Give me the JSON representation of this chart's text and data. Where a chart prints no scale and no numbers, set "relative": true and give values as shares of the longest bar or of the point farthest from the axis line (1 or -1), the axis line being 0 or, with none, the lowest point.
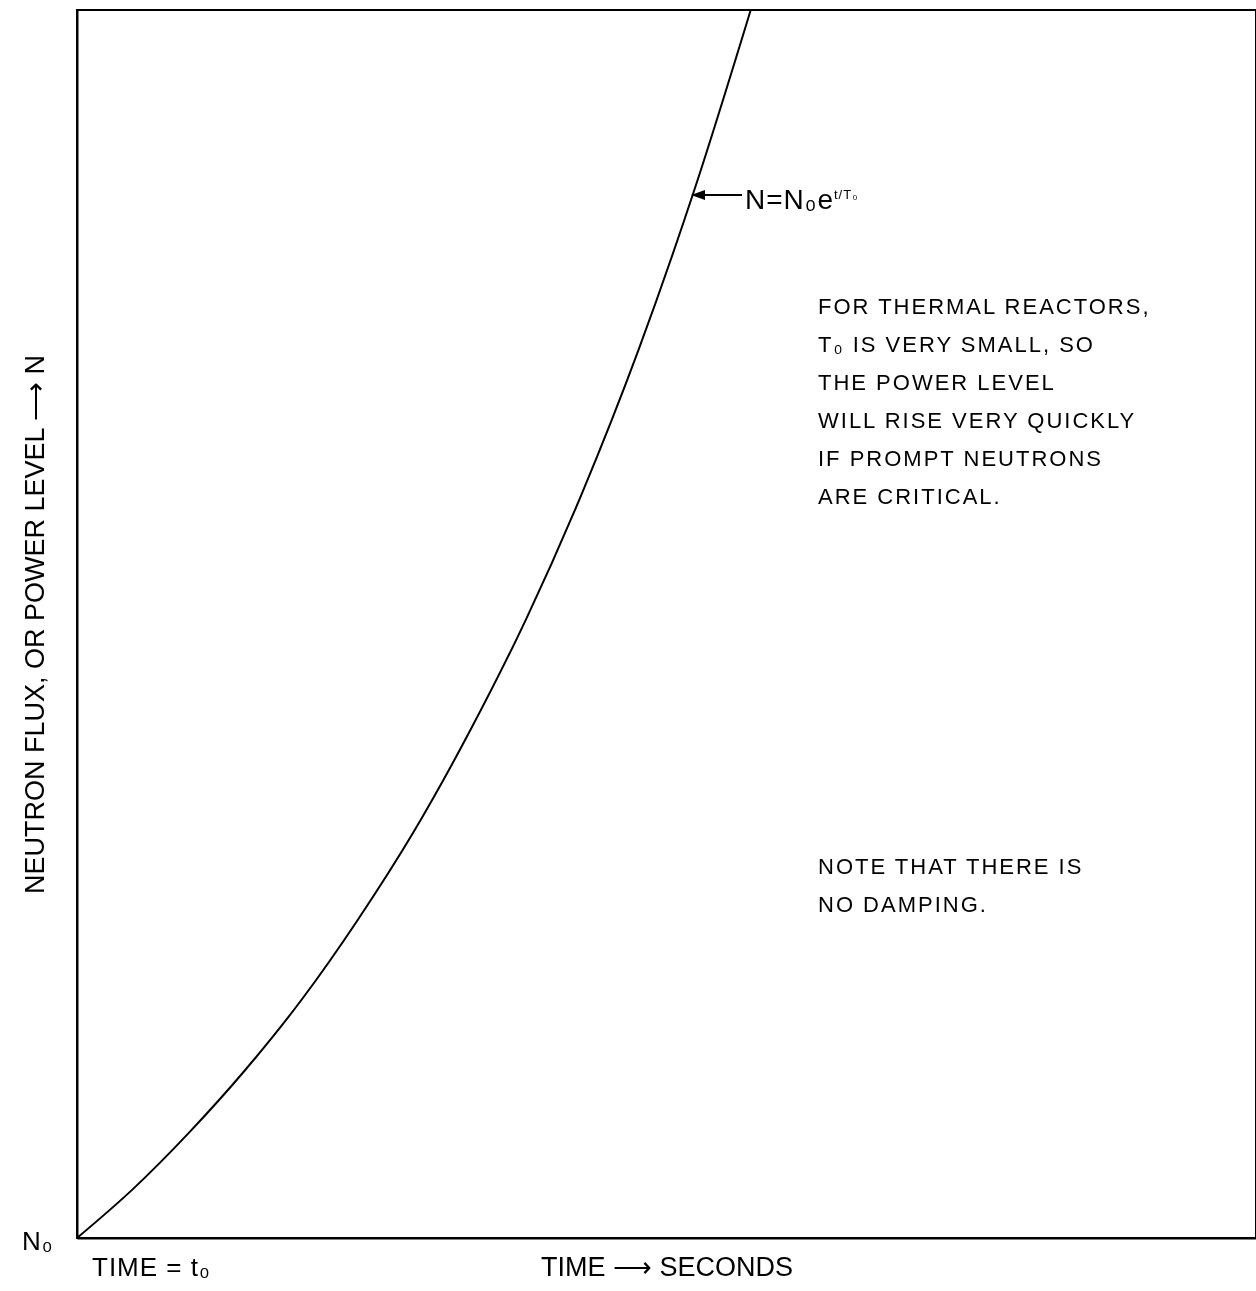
{
  "chart_data": {
    "type": "line",
    "relative": true,
    "xlabel": "TIME ⟶ SECONDS",
    "ylabel": "NEUTRON FLUX, OR POWER LEVEL ⟶ N",
    "categories": [
      null,
      null,
      null,
      null,
      null,
      null,
      null,
      null,
      null,
      null,
      null,
      null,
      null,
      null,
      null,
      null,
      null,
      null,
      null,
      null,
      null,
      null
    ],
    "series": [
      {
        "color": "#000000",
        "values": [
          0,
          0.04,
          0.086,
          0.137,
          0.194,
          0.259,
          0.331,
          0.413,
          0.504,
          0.607,
          0.723,
          0.854,
          1,
          null,
          null,
          null,
          null,
          null,
          null,
          null,
          null,
          null
        ]
      }
    ],
    "annotations": [
      "N=N₀e$^{t/T₀}$",
      "FOR THERMAL REACTORS,\nT₀ IS VERY SMALL, SO\nTHE POWER LEVEL\nWILL RISE VERY QUICKLY\nIF PROMPT NEUTRONS\nARE CRITICAL.",
      "NOTE THAT THERE IS\nNO DAMPING.",
      "N₀",
      "TIME = t₀"
    ],
    "grid": false,
    "legend": false,
    "marker": "none",
    "line_style": "solid"
  }
}
